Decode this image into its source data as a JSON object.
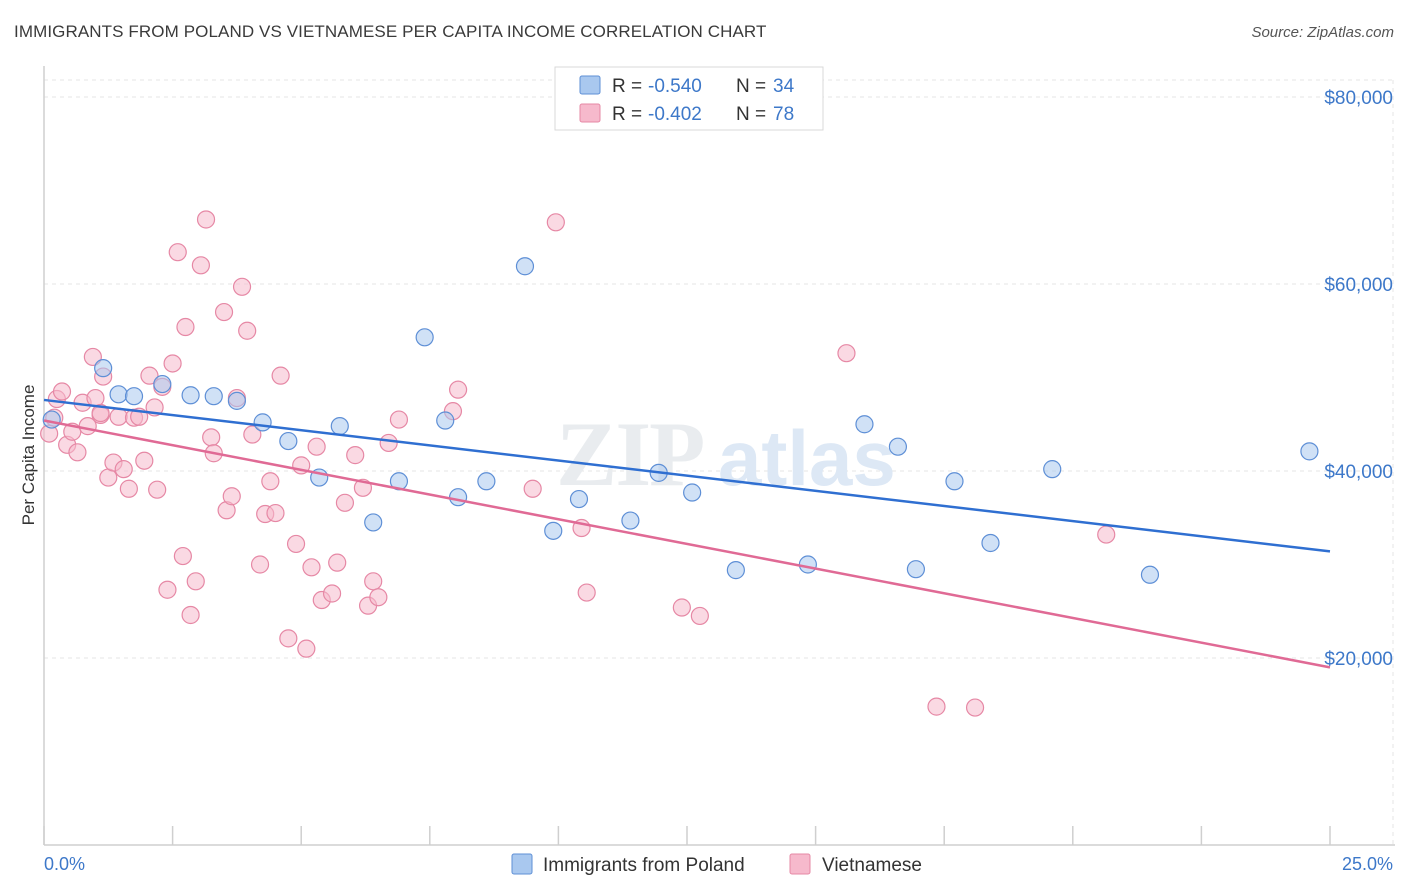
{
  "title": "IMMIGRANTS FROM POLAND VS VIETNAMESE PER CAPITA INCOME CORRELATION CHART",
  "source": "Source: ZipAtlas.com",
  "watermark": {
    "part1": "ZIP",
    "part2": "atlas"
  },
  "legend": {
    "rows": [
      {
        "r_label": "R =",
        "r_value": "-0.540",
        "n_label": "N =",
        "n_value": "34"
      },
      {
        "r_label": "R =",
        "r_value": "-0.402",
        "n_label": "N =",
        "n_value": "78"
      }
    ]
  },
  "colors": {
    "poland_fill": "#a9c8ef",
    "poland_stroke": "#5e8fd6",
    "poland_line": "#2f6fd1",
    "viet_fill": "#f6b9cc",
    "viet_stroke": "#e688a5",
    "viet_line": "#e06a95",
    "tick": "#3d78c9",
    "grid": "#e6e6e6"
  },
  "chart_data": {
    "type": "scatter",
    "title": "IMMIGRANTS FROM POLAND VS VIETNAMESE PER CAPITA INCOME CORRELATION CHART",
    "xlabel": "",
    "ylabel": "Per Capita Income",
    "xlim": [
      0,
      25
    ],
    "ylim": [
      0,
      82000
    ],
    "x_tick_labels": [
      "0.0%",
      "25.0%"
    ],
    "y_ticks": [
      20000,
      40000,
      60000,
      80000
    ],
    "y_tick_labels": [
      "$20,000",
      "$40,000",
      "$60,000",
      "$80,000"
    ],
    "grid": true,
    "series": [
      {
        "name": "Immigrants from Poland",
        "points": [
          [
            0.15,
            45500
          ],
          [
            1.15,
            51000
          ],
          [
            1.45,
            48200
          ],
          [
            1.75,
            48000
          ],
          [
            2.3,
            49300
          ],
          [
            2.85,
            48100
          ],
          [
            3.3,
            48000
          ],
          [
            3.75,
            47500
          ],
          [
            4.25,
            45200
          ],
          [
            4.75,
            43200
          ],
          [
            5.35,
            39300
          ],
          [
            5.75,
            44800
          ],
          [
            6.4,
            34500
          ],
          [
            6.9,
            38900
          ],
          [
            7.4,
            54300
          ],
          [
            7.8,
            45400
          ],
          [
            8.05,
            37200
          ],
          [
            8.6,
            38900
          ],
          [
            9.35,
            61900
          ],
          [
            9.9,
            33600
          ],
          [
            10.4,
            37000
          ],
          [
            11.4,
            34700
          ],
          [
            11.95,
            39800
          ],
          [
            12.6,
            37700
          ],
          [
            13.45,
            29400
          ],
          [
            14.85,
            30000
          ],
          [
            15.95,
            45000
          ],
          [
            16.6,
            42600
          ],
          [
            16.95,
            29500
          ],
          [
            17.7,
            38900
          ],
          [
            18.4,
            32300
          ],
          [
            19.6,
            40200
          ],
          [
            21.5,
            28900
          ],
          [
            24.6,
            42100
          ]
        ],
        "trend": [
          [
            0,
            47600
          ],
          [
            25,
            31400
          ]
        ]
      },
      {
        "name": "Vietnamese",
        "points": [
          [
            0.1,
            44000
          ],
          [
            0.2,
            45700
          ],
          [
            0.25,
            47700
          ],
          [
            0.35,
            48500
          ],
          [
            0.45,
            42800
          ],
          [
            0.55,
            44200
          ],
          [
            0.65,
            42000
          ],
          [
            0.75,
            47300
          ],
          [
            0.85,
            44800
          ],
          [
            0.95,
            52200
          ],
          [
            1.0,
            47800
          ],
          [
            1.1,
            46000
          ],
          [
            1.15,
            50100
          ],
          [
            1.25,
            39300
          ],
          [
            1.35,
            40900
          ],
          [
            1.45,
            45800
          ],
          [
            1.55,
            40200
          ],
          [
            1.65,
            38100
          ],
          [
            1.75,
            45700
          ],
          [
            1.85,
            45800
          ],
          [
            1.95,
            41100
          ],
          [
            2.05,
            50200
          ],
          [
            2.15,
            46800
          ],
          [
            2.2,
            38000
          ],
          [
            2.3,
            49000
          ],
          [
            2.4,
            27300
          ],
          [
            2.5,
            51500
          ],
          [
            2.6,
            63400
          ],
          [
            2.7,
            30900
          ],
          [
            2.75,
            55400
          ],
          [
            2.85,
            24600
          ],
          [
            2.95,
            28200
          ],
          [
            3.05,
            62000
          ],
          [
            3.15,
            66900
          ],
          [
            3.25,
            43600
          ],
          [
            3.3,
            41900
          ],
          [
            3.5,
            57000
          ],
          [
            3.55,
            35800
          ],
          [
            3.65,
            37300
          ],
          [
            3.75,
            47800
          ],
          [
            3.85,
            59700
          ],
          [
            3.95,
            55000
          ],
          [
            4.05,
            43900
          ],
          [
            4.2,
            30000
          ],
          [
            4.3,
            35400
          ],
          [
            4.4,
            38900
          ],
          [
            4.5,
            35500
          ],
          [
            4.6,
            50200
          ],
          [
            4.75,
            22100
          ],
          [
            4.9,
            32200
          ],
          [
            5.0,
            40600
          ],
          [
            5.1,
            21000
          ],
          [
            5.2,
            29700
          ],
          [
            5.3,
            42600
          ],
          [
            5.4,
            26200
          ],
          [
            5.6,
            26900
          ],
          [
            5.7,
            30200
          ],
          [
            5.85,
            36600
          ],
          [
            6.05,
            41700
          ],
          [
            6.2,
            38200
          ],
          [
            6.3,
            25600
          ],
          [
            6.4,
            28200
          ],
          [
            6.5,
            26500
          ],
          [
            6.7,
            43000
          ],
          [
            6.9,
            45500
          ],
          [
            7.95,
            46400
          ],
          [
            8.05,
            48700
          ],
          [
            9.5,
            38100
          ],
          [
            9.95,
            66600
          ],
          [
            10.45,
            33900
          ],
          [
            10.55,
            27000
          ],
          [
            12.4,
            25400
          ],
          [
            12.75,
            24500
          ],
          [
            15.6,
            52600
          ],
          [
            17.35,
            14800
          ],
          [
            18.1,
            14700
          ],
          [
            20.65,
            33200
          ],
          [
            1.1,
            46200
          ]
        ],
        "trend": [
          [
            0,
            45400
          ],
          [
            25,
            19000
          ]
        ]
      }
    ]
  },
  "bottom_legend": [
    "Immigrants from Poland",
    "Vietnamese"
  ]
}
